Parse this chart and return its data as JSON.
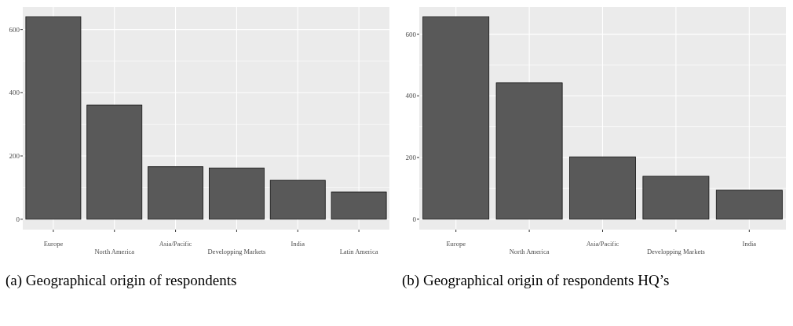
{
  "chart_data": [
    {
      "type": "bar",
      "title": "(a) Geographical origin of respondents",
      "categories": [
        "Europe",
        "North America",
        "Asia/Pacific",
        "Developping Markets",
        "India",
        "Latin America"
      ],
      "values": [
        640,
        361,
        166,
        162,
        123,
        86
      ],
      "color": "#595959",
      "ylim": [
        -33,
        671
      ],
      "yticks": [
        0,
        200,
        400,
        600
      ],
      "grid": true
    },
    {
      "type": "bar",
      "title": "(b) Geographical origin of respondents HQ’s",
      "categories": [
        "Europe",
        "North America",
        "Asia/Pacific",
        "Developping Markets",
        "India"
      ],
      "values": [
        656,
        442,
        202,
        139,
        94
      ],
      "color": "#595959",
      "ylim": [
        -34,
        688
      ],
      "yticks": [
        0,
        200,
        400,
        600
      ],
      "grid": true
    }
  ]
}
